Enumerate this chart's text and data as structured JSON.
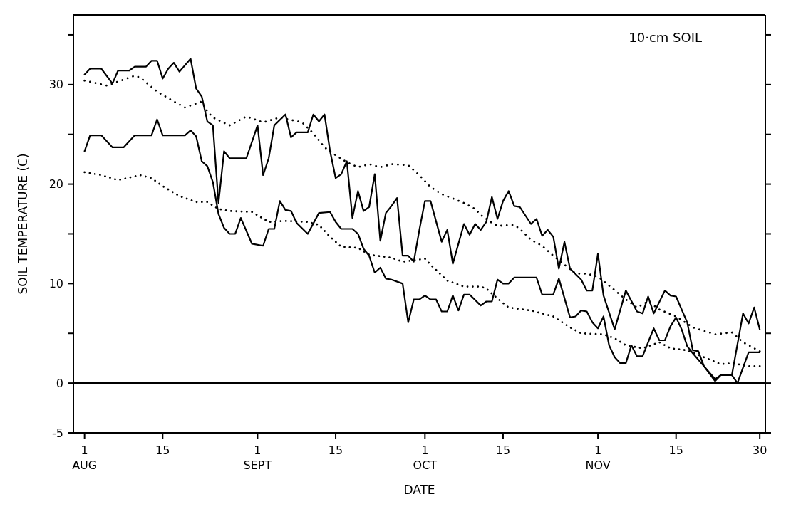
{
  "chart_data": {
    "type": "line",
    "xlabel": "DATE",
    "ylabel": "SOIL TEMPERATURE (C)",
    "annotations": [
      "10·cm SOIL"
    ],
    "xlim": [
      "--07-30",
      "--12-01"
    ],
    "xticks": [
      {
        "value": "--08-01",
        "label": "1\nAUG"
      },
      {
        "value": "--08-15",
        "label": "15"
      },
      {
        "value": "--09-01",
        "label": "1\nSEPT"
      },
      {
        "value": "--09-15",
        "label": "15"
      },
      {
        "value": "--10-01",
        "label": "1\nOCT"
      },
      {
        "value": "--10-15",
        "label": "15"
      },
      {
        "value": "--11-01",
        "label": "1\nNOV"
      },
      {
        "value": "--11-15",
        "label": "15"
      },
      {
        "value": "--11-30",
        "label": "30"
      }
    ],
    "ylim": [
      -5,
      37
    ],
    "yticks": [
      -5,
      0,
      {
        "value": 5,
        "label": null
      },
      10,
      {
        "value": 15,
        "label": null
      },
      20,
      {
        "value": 25,
        "label": null
      },
      30,
      {
        "value": 35,
        "label": null
      }
    ],
    "ref_lines": [
      {
        "axis": "y",
        "value": 0,
        "color": "#000000"
      }
    ],
    "series": [
      {
        "color": "#000000",
        "line_style": "solid",
        "x": [
          "--08-01",
          "--08-02",
          "--08-04",
          "--08-06",
          "--08-07",
          "--08-09",
          "--08-10",
          "--08-12",
          "--08-13",
          "--08-14",
          "--08-15",
          "--08-16",
          "--08-17",
          "--08-18",
          "--08-20",
          "--08-21",
          "--08-22",
          "--08-23",
          "--08-24",
          "--08-25",
          "--08-26",
          "--08-27",
          "--08-30",
          "--09-01",
          "--09-02",
          "--09-03",
          "--09-04",
          "--09-06",
          "--09-07",
          "--09-08",
          "--09-10",
          "--09-11",
          "--09-12",
          "--09-13",
          "--09-14",
          "--09-15",
          "--09-16",
          "--09-17",
          "--09-18",
          "--09-19",
          "--09-20",
          "--09-21",
          "--09-22",
          "--09-23",
          "--09-24",
          "--09-25",
          "--09-26",
          "--09-27",
          "--09-28",
          "--09-29",
          "--09-30",
          "--10-01",
          "--10-02",
          "--10-04",
          "--10-05",
          "--10-06",
          "--10-08",
          "--10-09",
          "--10-10",
          "--10-11",
          "--10-12",
          "--10-13",
          "--10-14",
          "--10-15",
          "--10-16",
          "--10-17",
          "--10-18",
          "--10-20",
          "--10-21",
          "--10-22",
          "--10-23",
          "--10-24",
          "--10-25",
          "--10-26",
          "--10-27",
          "--10-29",
          "--10-30",
          "--10-31",
          "--11-01",
          "--11-02",
          "--11-04",
          "--11-06",
          "--11-08",
          "--11-09",
          "--11-10",
          "--11-11",
          "--11-13",
          "--11-14",
          "--11-15",
          "--11-17",
          "--11-18",
          "--11-19",
          "--11-20",
          "--11-22",
          "--11-23",
          "--11-25",
          "--11-27",
          "--11-28",
          "--11-29",
          "--11-30"
        ],
        "values": [
          31.0,
          31.6,
          31.6,
          30.1,
          31.4,
          31.4,
          31.8,
          31.8,
          32.4,
          32.4,
          30.6,
          31.6,
          32.2,
          31.3,
          32.6,
          29.6,
          28.8,
          26.3,
          25.9,
          18.1,
          23.3,
          22.6,
          22.6,
          25.9,
          20.9,
          22.6,
          25.9,
          27.0,
          24.7,
          25.2,
          25.2,
          27.0,
          26.3,
          27.0,
          23.3,
          20.6,
          21.0,
          22.3,
          16.6,
          19.3,
          17.3,
          17.7,
          21.0,
          14.3,
          17.1,
          17.8,
          18.6,
          12.8,
          12.8,
          12.2,
          15.4,
          18.3,
          18.3,
          14.2,
          15.4,
          12.0,
          16.0,
          14.9,
          16.0,
          15.4,
          16.2,
          18.7,
          16.5,
          18.3,
          19.3,
          17.8,
          17.7,
          16.0,
          16.5,
          14.8,
          15.4,
          14.7,
          11.5,
          14.2,
          11.5,
          10.4,
          9.3,
          9.3,
          13.0,
          8.8,
          5.4,
          9.3,
          7.2,
          7.0,
          8.7,
          7.0,
          9.3,
          8.8,
          8.7,
          6.1,
          3.3,
          3.2,
          1.7,
          0.2,
          0.8,
          0.8,
          7.0,
          6.0,
          7.6,
          5.4
        ]
      },
      {
        "color": "#000000",
        "line_style": "solid",
        "x": [
          "--08-01",
          "--08-02",
          "--08-04",
          "--08-06",
          "--08-08",
          "--08-10",
          "--08-13",
          "--08-14",
          "--08-15",
          "--08-19",
          "--08-20",
          "--08-21",
          "--08-22",
          "--08-23",
          "--08-24",
          "--08-25",
          "--08-26",
          "--08-27",
          "--08-28",
          "--08-29",
          "--08-31",
          "--09-02",
          "--09-03",
          "--09-04",
          "--09-05",
          "--09-06",
          "--09-07",
          "--09-08",
          "--09-10",
          "--09-12",
          "--09-14",
          "--09-15",
          "--09-16",
          "--09-18",
          "--09-19",
          "--09-20",
          "--09-21",
          "--09-22",
          "--09-23",
          "--09-24",
          "--09-25",
          "--09-27",
          "--09-28",
          "--09-29",
          "--09-30",
          "--10-01",
          "--10-02",
          "--10-03",
          "--10-04",
          "--10-05",
          "--10-06",
          "--10-07",
          "--10-08",
          "--10-09",
          "--10-11",
          "--10-12",
          "--10-13",
          "--10-14",
          "--10-15",
          "--10-16",
          "--10-17",
          "--10-21",
          "--10-22",
          "--10-24",
          "--10-25",
          "--10-27",
          "--10-28",
          "--10-29",
          "--10-30",
          "--10-31",
          "--11-01",
          "--11-02",
          "--11-03",
          "--11-04",
          "--11-05",
          "--11-06",
          "--11-07",
          "--11-08",
          "--11-09",
          "--11-11",
          "--11-12",
          "--11-13",
          "--11-14",
          "--11-15",
          "--11-16",
          "--11-17",
          "--11-18",
          "--11-20",
          "--11-22",
          "--11-23",
          "--11-25",
          "--11-26",
          "--11-28",
          "--11-30"
        ],
        "values": [
          23.3,
          24.9,
          24.9,
          23.7,
          23.7,
          24.9,
          24.9,
          26.5,
          24.9,
          24.9,
          25.4,
          24.8,
          22.3,
          21.8,
          20.2,
          17.0,
          15.6,
          15.0,
          15.0,
          16.6,
          14.0,
          13.8,
          15.5,
          15.5,
          18.3,
          17.4,
          17.3,
          16.1,
          15.0,
          17.1,
          17.2,
          16.2,
          15.5,
          15.5,
          15.0,
          13.5,
          12.8,
          11.1,
          11.6,
          10.5,
          10.4,
          10.0,
          6.1,
          8.4,
          8.4,
          8.8,
          8.4,
          8.4,
          7.2,
          7.2,
          8.8,
          7.3,
          8.9,
          8.9,
          7.8,
          8.2,
          8.2,
          10.4,
          10.0,
          10.0,
          10.6,
          10.6,
          8.9,
          8.9,
          10.5,
          6.6,
          6.7,
          7.3,
          7.2,
          6.1,
          5.5,
          6.7,
          3.8,
          2.6,
          2.0,
          2.0,
          3.8,
          2.7,
          2.7,
          5.5,
          4.3,
          4.3,
          5.7,
          6.6,
          5.4,
          3.7,
          3.0,
          1.7,
          0.4,
          0.8,
          0.8,
          0.0,
          3.1,
          3.1
        ]
      },
      {
        "color": "#000000",
        "line_style": "dotted",
        "x": [
          "--08-01",
          "--08-05",
          "--08-10",
          "--08-11",
          "--08-14",
          "--08-17",
          "--08-19",
          "--08-22",
          "--08-23",
          "--08-24",
          "--08-27",
          "--08-30",
          "--09-02",
          "--09-05",
          "--09-09",
          "--09-11",
          "--09-13",
          "--09-15",
          "--09-17",
          "--09-19",
          "--09-21",
          "--09-23",
          "--09-25",
          "--09-28",
          "--09-30",
          "--10-02",
          "--10-04",
          "--10-08",
          "--10-10",
          "--10-11",
          "--10-13",
          "--10-14",
          "--10-17",
          "--10-18",
          "--10-20",
          "--10-22",
          "--10-24",
          "--10-26",
          "--10-28",
          "--10-30",
          "--11-01",
          "--11-03",
          "--11-06",
          "--11-08",
          "--11-10",
          "--11-12",
          "--11-15",
          "--11-18",
          "--11-22",
          "--11-25",
          "--11-27",
          "--11-30"
        ],
        "values": [
          30.4,
          29.9,
          30.9,
          30.7,
          29.3,
          28.3,
          27.7,
          28.3,
          27.3,
          26.7,
          25.9,
          26.8,
          26.2,
          26.7,
          26.2,
          25.1,
          23.7,
          22.9,
          22.2,
          21.7,
          22.0,
          21.7,
          22.0,
          21.9,
          20.9,
          19.7,
          19.0,
          18.1,
          17.5,
          16.9,
          16.1,
          15.8,
          15.9,
          15.5,
          14.4,
          13.8,
          12.8,
          11.9,
          11.0,
          11.0,
          10.7,
          9.8,
          8.4,
          7.6,
          8.2,
          7.4,
          6.7,
          5.6,
          4.9,
          5.1,
          4.1,
          3.2
        ]
      },
      {
        "color": "#000000",
        "line_style": "dotted",
        "x": [
          "--08-01",
          "--08-04",
          "--08-07",
          "--08-11",
          "--08-13",
          "--08-15",
          "--08-18",
          "--08-21",
          "--08-23",
          "--08-25",
          "--08-27",
          "--08-31",
          "--09-03",
          "--09-06",
          "--09-10",
          "--09-12",
          "--09-14",
          "--09-16",
          "--09-19",
          "--09-21",
          "--09-25",
          "--09-27",
          "--10-01",
          "--10-02",
          "--10-05",
          "--10-08",
          "--10-11",
          "--10-12",
          "--10-14",
          "--10-16",
          "--10-20",
          "--10-24",
          "--10-27",
          "--10-29",
          "--11-02",
          "--11-04",
          "--11-06",
          "--11-09",
          "--11-12",
          "--11-14",
          "--11-17",
          "--11-20",
          "--11-23",
          "--11-25",
          "--11-28",
          "--11-30"
        ],
        "values": [
          21.2,
          20.9,
          20.4,
          20.9,
          20.6,
          19.8,
          18.8,
          18.2,
          18.2,
          17.5,
          17.3,
          17.2,
          16.2,
          16.3,
          16.2,
          15.9,
          14.7,
          13.7,
          13.6,
          12.9,
          12.6,
          12.2,
          12.5,
          11.9,
          10.3,
          9.7,
          9.7,
          9.5,
          8.5,
          7.6,
          7.3,
          6.7,
          5.6,
          5.0,
          4.9,
          4.5,
          3.8,
          3.5,
          4.1,
          3.5,
          3.3,
          2.6,
          1.9,
          2.0,
          1.7,
          1.7
        ]
      }
    ]
  }
}
